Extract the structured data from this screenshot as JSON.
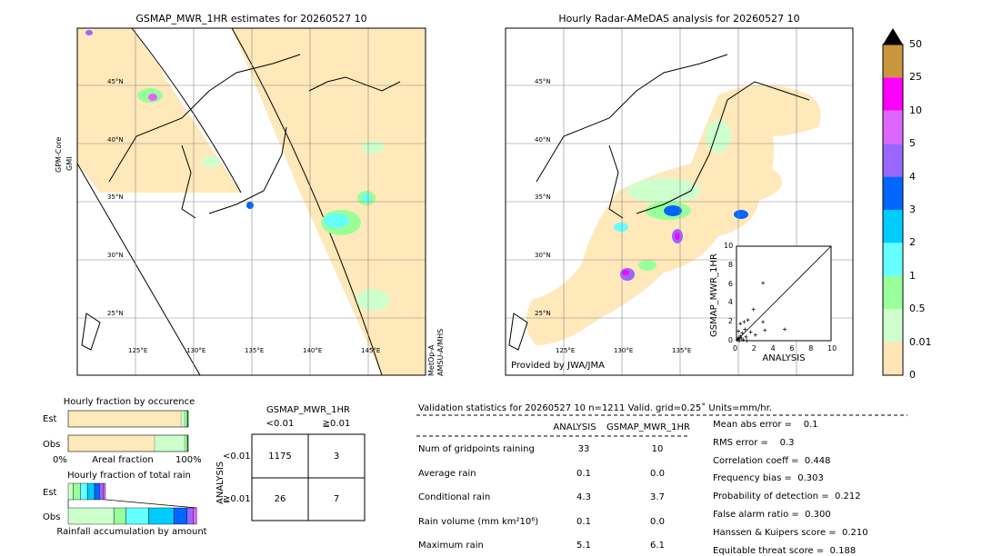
{
  "map_left": {
    "title": "GSMAP_MWR_1HR estimates for 20260527 10",
    "side_label_top": "GPM-Core",
    "side_label_bottom": "GMI",
    "side_label_right_top": "MetOp-A",
    "side_label_right_bottom": "AMSU-A/MHS",
    "lat_labels": [
      "45°N",
      "40°N",
      "35°N",
      "30°N",
      "25°N"
    ],
    "lon_labels": [
      "125°E",
      "130°E",
      "135°E",
      "140°E",
      "145°E"
    ]
  },
  "map_right": {
    "title": "Hourly Radar-AMeDAS analysis for 20260527 10",
    "credit": "Provided by JWA/JMA",
    "lat_labels": [
      "45°N",
      "40°N",
      "35°N",
      "30°N",
      "25°N"
    ],
    "lon_labels": [
      "125°E",
      "130°E",
      "135°E"
    ]
  },
  "colorbar": {
    "labels": [
      "50",
      "25",
      "10",
      "5",
      "4",
      "3",
      "2",
      "1",
      "0.5",
      "0.01",
      "0"
    ],
    "colors": [
      "#c8963c",
      "#ff00ff",
      "#dd66ff",
      "#9966ff",
      "#0066ff",
      "#00ccff",
      "#66ffff",
      "#99ff99",
      "#ccffcc",
      "#ffe4b5"
    ]
  },
  "chart_data": [
    {
      "type": "scatter",
      "title": "",
      "xlabel": "ANALYSIS",
      "ylabel": "GSMAP_MWR_1HR",
      "xlim": [
        0,
        10
      ],
      "ylim": [
        0,
        10
      ],
      "x_ticks": [
        "0",
        "2",
        "4",
        "6",
        "8",
        "10"
      ],
      "y_ticks": [
        "0",
        "2",
        "4",
        "6",
        "8",
        "10"
      ],
      "points": [
        [
          0.1,
          0.1
        ],
        [
          0.2,
          0.3
        ],
        [
          0.3,
          0.2
        ],
        [
          0.4,
          0.5
        ],
        [
          0.5,
          0.3
        ],
        [
          0.6,
          0.8
        ],
        [
          0.2,
          1.0
        ],
        [
          0.4,
          1.8
        ],
        [
          0.8,
          2.0
        ],
        [
          1.2,
          2.2
        ],
        [
          1.5,
          0.9
        ],
        [
          1.0,
          0.4
        ],
        [
          2.0,
          0.6
        ],
        [
          1.8,
          3.3
        ],
        [
          2.8,
          6.1
        ],
        [
          2.8,
          2.0
        ],
        [
          3.0,
          1.1
        ],
        [
          5.1,
          1.2
        ],
        [
          0.3,
          0.0
        ],
        [
          0.7,
          0.1
        ],
        [
          1.1,
          0.0
        ],
        [
          0.9,
          1.2
        ]
      ]
    },
    {
      "type": "bar",
      "title": "Hourly fraction by occurence",
      "categories": [
        "Est",
        "Obs"
      ],
      "xlabel": "Areal fraction",
      "x_ticks": [
        "0%",
        "100%"
      ],
      "series": [
        {
          "values": [
            0.94,
            0.72
          ]
        },
        {
          "values": [
            0.03,
            0.25
          ]
        },
        {
          "values": [
            0.02,
            0.02
          ]
        },
        {
          "values": [
            0.01,
            0.01
          ]
        }
      ]
    },
    {
      "type": "bar",
      "title": "Hourly fraction of total rain",
      "categories": [
        "Est",
        "Obs"
      ],
      "xlabel": "Rainfall accumulation by amount",
      "series": [
        {
          "values": [
            0.04,
            0.38
          ]
        },
        {
          "values": [
            0.06,
            0.1
          ]
        },
        {
          "values": [
            0.06,
            0.19
          ]
        },
        {
          "values": [
            0.06,
            0.21
          ]
        },
        {
          "values": [
            0.04,
            0.11
          ]
        },
        {
          "values": [
            0.03,
            0.05
          ]
        },
        {
          "values": [
            0.02,
            0.03
          ]
        }
      ]
    },
    {
      "type": "table",
      "title": "GSMAP_MWR_1HR",
      "col_headers": [
        "<0.01",
        "≧0.01"
      ],
      "row_label": "ANALYSIS",
      "row_headers": [
        "<0.01",
        "≧0.01"
      ],
      "cells": [
        [
          "1175",
          "3"
        ],
        [
          "26",
          "7"
        ]
      ]
    }
  ],
  "validation": {
    "header": "Validation statistics for 20260527 10  n=1211 Valid. grid=0.25˚ Units=mm/hr.",
    "col1": "ANALYSIS",
    "col2": "GSMAP_MWR_1HR",
    "rows": [
      {
        "label": "Num of gridpoints raining",
        "a": "33",
        "g": "10"
      },
      {
        "label": "Average rain",
        "a": "0.1",
        "g": "0.0"
      },
      {
        "label": "Conditional rain",
        "a": "4.3",
        "g": "3.7"
      },
      {
        "label": "Rain volume (mm km²10⁶)",
        "a": "0.1",
        "g": "0.0"
      },
      {
        "label": "Maximum rain",
        "a": "5.1",
        "g": "6.1"
      }
    ],
    "scores": [
      "Mean abs error =    0.1",
      "RMS error =    0.3",
      "Correlation coeff =  0.448",
      "Frequency bias =  0.303",
      "Probability of detection =  0.212",
      "False alarm ratio =  0.300",
      "Hanssen & Kuipers score =  0.210",
      "Equitable threat score =  0.188"
    ]
  }
}
